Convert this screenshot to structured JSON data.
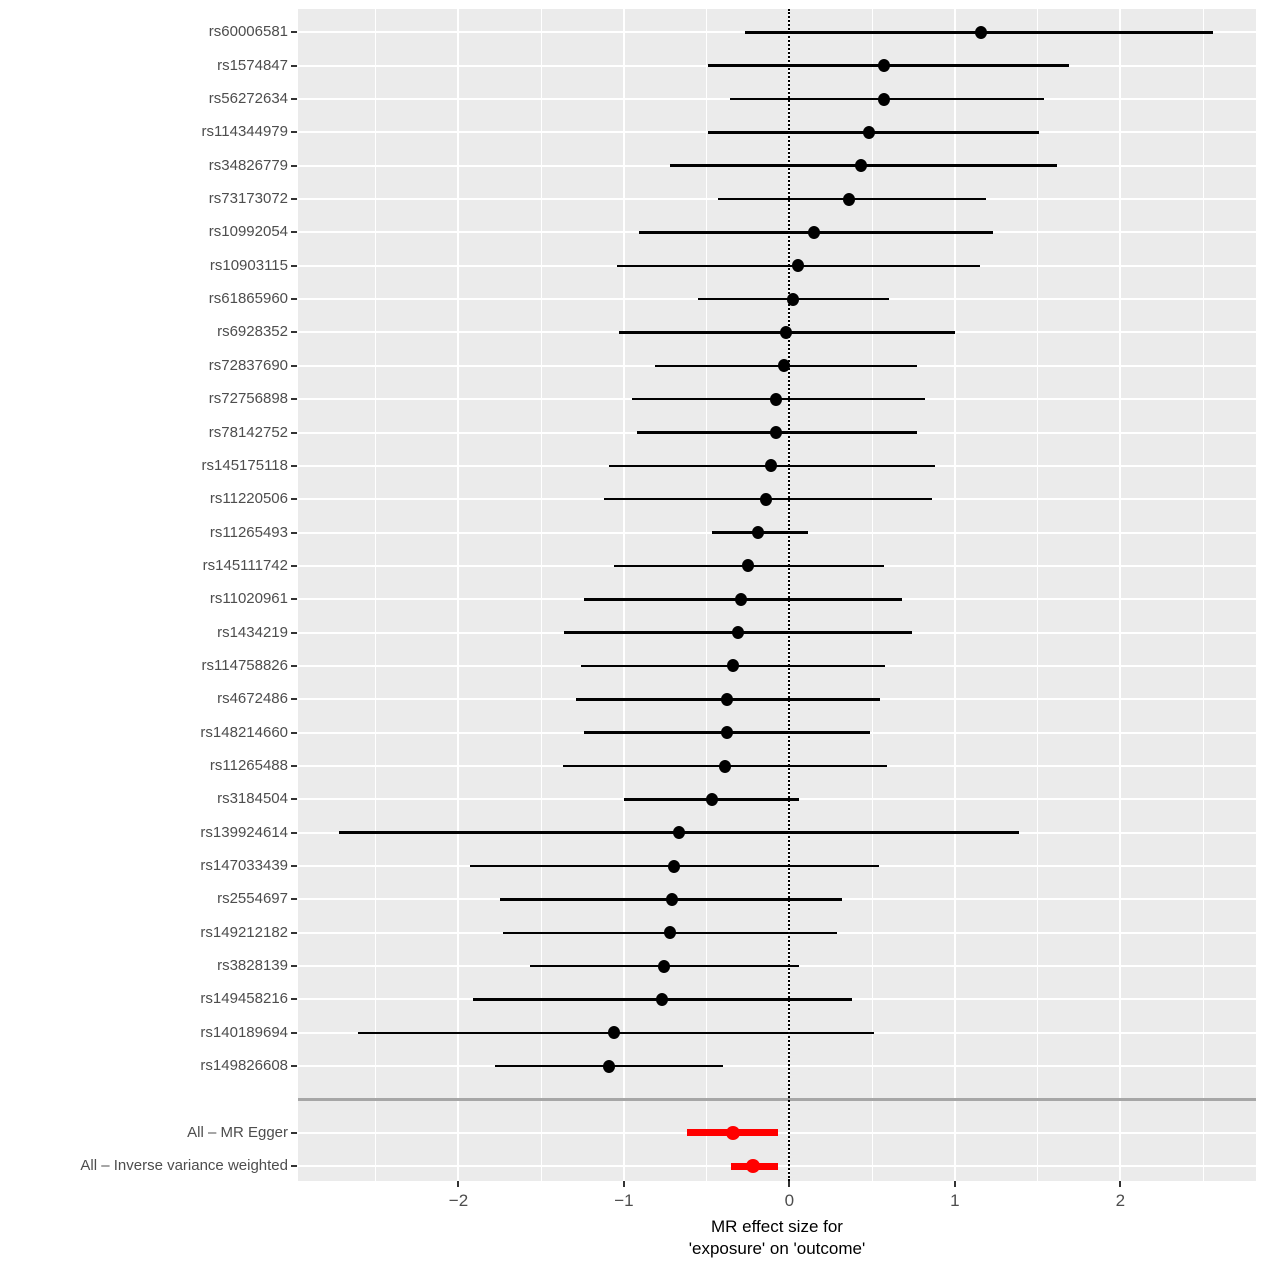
{
  "chart_data": {
    "type": "scatter",
    "variant": "forest-plot",
    "title": "",
    "xlabel": "MR effect size for 'exposure' on 'outcome'",
    "xlabel_line1": "MR effect size for",
    "xlabel_line2": "'exposure' on 'outcome'",
    "ylabel": "",
    "xlim": [
      -2.97,
      2.82
    ],
    "grid": "on",
    "legend": "none",
    "zero_reference_line": 0,
    "major_gridlines": [
      -2,
      -1,
      0,
      1,
      2
    ],
    "minor_gridlines": [
      -2.5,
      -1.5,
      -0.5,
      0.5,
      1.5,
      2.5
    ],
    "x_ticks": [
      {
        "value": -2,
        "label": "−2"
      },
      {
        "value": -1,
        "label": "−1"
      },
      {
        "value": 0,
        "label": "0"
      },
      {
        "value": 1,
        "label": "1"
      },
      {
        "value": 2,
        "label": "2"
      }
    ],
    "rows": [
      {
        "label": "rs60006581",
        "est": 1.16,
        "lo": -0.27,
        "hi": 2.56,
        "group": "snp"
      },
      {
        "label": "rs1574847",
        "est": 0.57,
        "lo": -0.49,
        "hi": 1.69,
        "group": "snp"
      },
      {
        "label": "rs56272634",
        "est": 0.57,
        "lo": -0.36,
        "hi": 1.54,
        "group": "snp"
      },
      {
        "label": "rs114344979",
        "est": 0.48,
        "lo": -0.49,
        "hi": 1.51,
        "group": "snp"
      },
      {
        "label": "rs34826779",
        "est": 0.43,
        "lo": -0.72,
        "hi": 1.62,
        "group": "snp"
      },
      {
        "label": "rs73173072",
        "est": 0.36,
        "lo": -0.43,
        "hi": 1.19,
        "group": "snp"
      },
      {
        "label": "rs10992054",
        "est": 0.15,
        "lo": -0.91,
        "hi": 1.23,
        "group": "snp"
      },
      {
        "label": "rs10903115",
        "est": 0.05,
        "lo": -1.04,
        "hi": 1.15,
        "group": "snp"
      },
      {
        "label": "rs61865960",
        "est": 0.02,
        "lo": -0.55,
        "hi": 0.6,
        "group": "snp"
      },
      {
        "label": "rs6928352",
        "est": -0.02,
        "lo": -1.03,
        "hi": 1.0,
        "group": "snp"
      },
      {
        "label": "rs72837690",
        "est": -0.03,
        "lo": -0.81,
        "hi": 0.77,
        "group": "snp"
      },
      {
        "label": "rs72756898",
        "est": -0.08,
        "lo": -0.95,
        "hi": 0.82,
        "group": "snp"
      },
      {
        "label": "rs78142752",
        "est": -0.08,
        "lo": -0.92,
        "hi": 0.77,
        "group": "snp"
      },
      {
        "label": "rs145175118",
        "est": -0.11,
        "lo": -1.09,
        "hi": 0.88,
        "group": "snp"
      },
      {
        "label": "rs11220506",
        "est": -0.14,
        "lo": -1.12,
        "hi": 0.86,
        "group": "snp"
      },
      {
        "label": "rs11265493",
        "est": -0.19,
        "lo": -0.47,
        "hi": 0.11,
        "group": "snp"
      },
      {
        "label": "rs145111742",
        "est": -0.25,
        "lo": -1.06,
        "hi": 0.57,
        "group": "snp"
      },
      {
        "label": "rs11020961",
        "est": -0.29,
        "lo": -1.24,
        "hi": 0.68,
        "group": "snp"
      },
      {
        "label": "rs1434219",
        "est": -0.31,
        "lo": -1.36,
        "hi": 0.74,
        "group": "snp"
      },
      {
        "label": "rs114758826",
        "est": -0.34,
        "lo": -1.26,
        "hi": 0.58,
        "group": "snp"
      },
      {
        "label": "rs4672486",
        "est": -0.38,
        "lo": -1.29,
        "hi": 0.55,
        "group": "snp"
      },
      {
        "label": "rs148214660",
        "est": -0.38,
        "lo": -1.24,
        "hi": 0.49,
        "group": "snp"
      },
      {
        "label": "rs11265488",
        "est": -0.39,
        "lo": -1.37,
        "hi": 0.59,
        "group": "snp"
      },
      {
        "label": "rs3184504",
        "est": -0.47,
        "lo": -1.0,
        "hi": 0.06,
        "group": "snp"
      },
      {
        "label": "rs139924614",
        "est": -0.67,
        "lo": -2.72,
        "hi": 1.39,
        "group": "snp"
      },
      {
        "label": "rs147033439",
        "est": -0.7,
        "lo": -1.93,
        "hi": 0.54,
        "group": "snp"
      },
      {
        "label": "rs2554697",
        "est": -0.71,
        "lo": -1.75,
        "hi": 0.32,
        "group": "snp"
      },
      {
        "label": "rs149212182",
        "est": -0.72,
        "lo": -1.73,
        "hi": 0.29,
        "group": "snp"
      },
      {
        "label": "rs3828139",
        "est": -0.76,
        "lo": -1.57,
        "hi": 0.06,
        "group": "snp"
      },
      {
        "label": "rs149458216",
        "est": -0.77,
        "lo": -1.91,
        "hi": 0.38,
        "group": "snp"
      },
      {
        "label": "rs140189694",
        "est": -1.06,
        "lo": -2.61,
        "hi": 0.51,
        "group": "snp"
      },
      {
        "label": "rs149826608",
        "est": -1.09,
        "lo": -1.78,
        "hi": -0.4,
        "group": "snp"
      },
      {
        "label": "",
        "group": "separator"
      },
      {
        "label": "All – MR Egger",
        "est": -0.34,
        "lo": -0.62,
        "hi": -0.07,
        "group": "summary"
      },
      {
        "label": "All – Inverse variance weighted",
        "est": -0.22,
        "lo": -0.35,
        "hi": -0.07,
        "group": "summary"
      }
    ],
    "colors": {
      "panel_bg": "#EBEBEB",
      "grid": "#FFFFFF",
      "snp": "#000000",
      "summary": "#FF0000",
      "axis_text": "#4D4D4D",
      "axis_title": "#000000",
      "tick": "#333333",
      "separator": "#A6A6A6",
      "zero_line": "#000000"
    }
  }
}
